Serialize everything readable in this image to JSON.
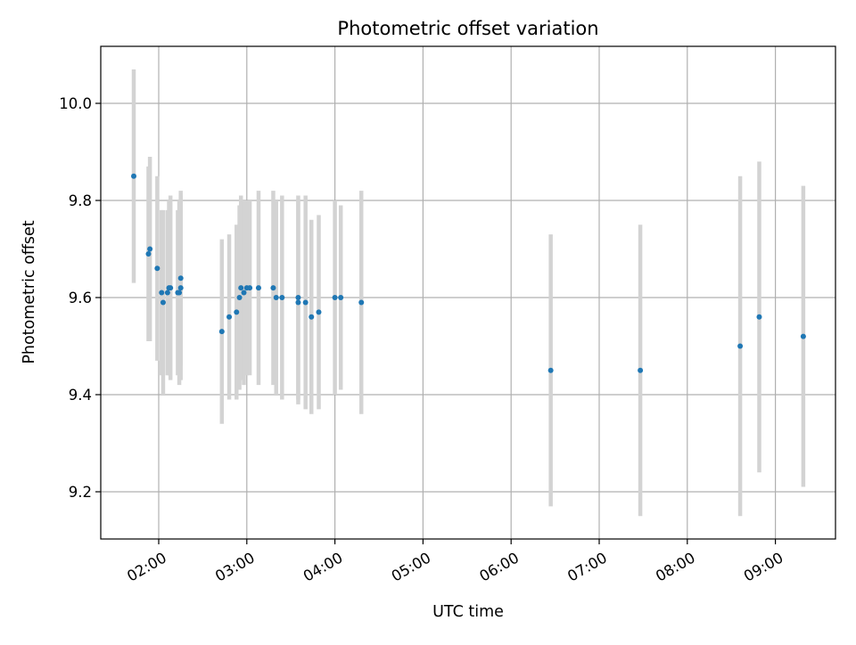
{
  "chart_data": {
    "type": "scatter",
    "title": "Photometric offset variation",
    "xlabel": "UTC time",
    "ylabel": "Photometric offset",
    "grid": true,
    "xlim": [
      "01:20",
      "09:40"
    ],
    "ylim": [
      9.1,
      10.12
    ],
    "x_tick_labels": [
      "02:00",
      "03:00",
      "04:00",
      "05:00",
      "06:00",
      "07:00",
      "08:00",
      "09:00"
    ],
    "y_tick_labels": [
      "9.2",
      "9.4",
      "9.6",
      "9.8",
      "10.0"
    ],
    "y_tick_values": [
      9.2,
      9.4,
      9.6,
      9.8,
      10.0
    ],
    "colors": {
      "marker": "#1f77b4",
      "errorbar": "#d3d3d3",
      "grid": "#b0b0b0",
      "axes": "#000000"
    },
    "series": [
      {
        "marker": "dot",
        "points": [
          {
            "x": "01:43",
            "y": 9.85,
            "err": 0.22
          },
          {
            "x": "01:53",
            "y": 9.69,
            "err": 0.18
          },
          {
            "x": "01:54",
            "y": 9.7,
            "err": 0.19
          },
          {
            "x": "01:59",
            "y": 9.66,
            "err": 0.19
          },
          {
            "x": "02:02",
            "y": 9.61,
            "err": 0.17
          },
          {
            "x": "02:03",
            "y": 9.59,
            "err": 0.19
          },
          {
            "x": "02:06",
            "y": 9.61,
            "err": 0.17
          },
          {
            "x": "02:07",
            "y": 9.62,
            "err": 0.18
          },
          {
            "x": "02:08",
            "y": 9.62,
            "err": 0.19
          },
          {
            "x": "02:13",
            "y": 9.61,
            "err": 0.17
          },
          {
            "x": "02:14",
            "y": 9.61,
            "err": 0.19
          },
          {
            "x": "02:15",
            "y": 9.62,
            "err": 0.19
          },
          {
            "x": "02:15",
            "y": 9.64,
            "err": 0.18
          },
          {
            "x": "02:43",
            "y": 9.53,
            "err": 0.19
          },
          {
            "x": "02:48",
            "y": 9.56,
            "err": 0.17
          },
          {
            "x": "02:53",
            "y": 9.57,
            "err": 0.18
          },
          {
            "x": "02:55",
            "y": 9.6,
            "err": 0.19
          },
          {
            "x": "02:56",
            "y": 9.62,
            "err": 0.19
          },
          {
            "x": "02:58",
            "y": 9.61,
            "err": 0.19
          },
          {
            "x": "03:00",
            "y": 9.62,
            "err": 0.18
          },
          {
            "x": "03:02",
            "y": 9.62,
            "err": 0.18
          },
          {
            "x": "03:08",
            "y": 9.62,
            "err": 0.2
          },
          {
            "x": "03:18",
            "y": 9.62,
            "err": 0.2
          },
          {
            "x": "03:20",
            "y": 9.6,
            "err": 0.2
          },
          {
            "x": "03:24",
            "y": 9.6,
            "err": 0.21
          },
          {
            "x": "03:35",
            "y": 9.59,
            "err": 0.21
          },
          {
            "x": "03:35",
            "y": 9.6,
            "err": 0.21
          },
          {
            "x": "03:40",
            "y": 9.59,
            "err": 0.22
          },
          {
            "x": "03:44",
            "y": 9.56,
            "err": 0.2
          },
          {
            "x": "03:49",
            "y": 9.57,
            "err": 0.2
          },
          {
            "x": "04:00",
            "y": 9.6,
            "err": 0.2
          },
          {
            "x": "04:04",
            "y": 9.6,
            "err": 0.19
          },
          {
            "x": "04:18",
            "y": 9.59,
            "err": 0.23
          },
          {
            "x": "06:27",
            "y": 9.45,
            "err": 0.28
          },
          {
            "x": "07:28",
            "y": 9.45,
            "err": 0.3
          },
          {
            "x": "08:36",
            "y": 9.5,
            "err": 0.35
          },
          {
            "x": "08:49",
            "y": 9.56,
            "err": 0.32
          },
          {
            "x": "09:19",
            "y": 9.52,
            "err": 0.31
          }
        ]
      }
    ]
  }
}
